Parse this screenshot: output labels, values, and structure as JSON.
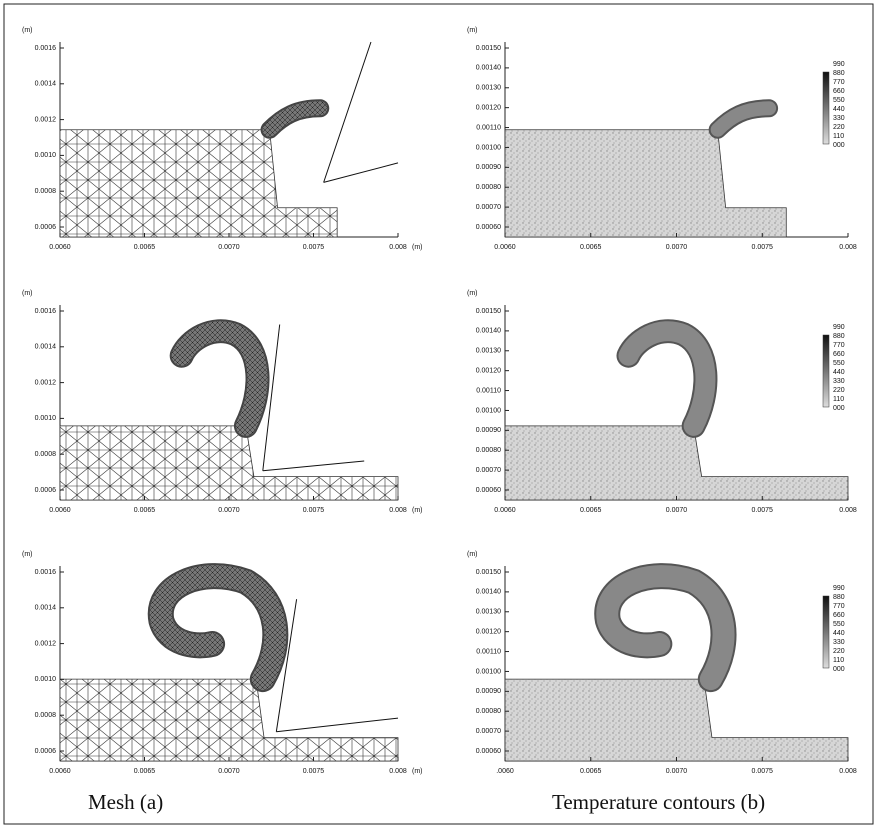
{
  "panels": [
    {
      "y_unit": "(m)",
      "yticks": [
        "0.0016",
        "0.0014",
        "0.0012",
        "0.0010",
        "0.0008",
        "0.0006"
      ],
      "xticks": [
        "0.0060",
        "0.0065",
        "0.0070",
        "0.0075",
        "0.008"
      ],
      "x_unit": "(m)"
    },
    {
      "y_unit": "(m)",
      "yticks": [
        "0.00150",
        "0.00140",
        "0.00130",
        "0.00120",
        "0.00110",
        "0.00100",
        "0.00090",
        "0.00080",
        "0.00070",
        "0.00060"
      ],
      "xticks": [
        "0.0060",
        "0.0065",
        "0.0070",
        "0.0075",
        "0.008"
      ],
      "legend": [
        "990",
        "880",
        "770",
        "660",
        "550",
        "440",
        "330",
        "220",
        "110",
        "000"
      ]
    },
    {
      "y_unit": "(m)",
      "yticks": [
        "0.0016",
        "0.0014",
        "0.0012",
        "0.0010",
        "0.0008",
        "0.0006"
      ],
      "xticks": [
        "0.0060",
        "0.0065",
        "0.0070",
        "0.0075",
        "0.008"
      ],
      "x_unit": "(m)"
    },
    {
      "y_unit": "(m)",
      "yticks": [
        "0.00150",
        "0.00140",
        "0.00130",
        "0.00120",
        "0.00110",
        "0.00100",
        "0.00090",
        "0.00080",
        "0.00070",
        "0.00060"
      ],
      "xticks": [
        "0.0060",
        "0.0065",
        "0.0070",
        "0.0075",
        "0.008"
      ],
      "legend": [
        "990",
        "880",
        "770",
        "660",
        "550",
        "440",
        "330",
        "220",
        "110",
        "000"
      ]
    },
    {
      "y_unit": "(m)",
      "yticks": [
        "0.0016",
        "0.0014",
        "0.0012",
        "0.0010",
        "0.0008",
        "0.0006"
      ],
      "xticks": [
        "0.0060",
        "0.0065",
        "0.0070",
        "0.0075",
        "0.008"
      ],
      "x_unit": "(m)"
    },
    {
      "y_unit": "(m)",
      "yticks": [
        "0.00150",
        "0.00140",
        "0.00130",
        "0.00120",
        "0.00110",
        "0.00100",
        "0.00090",
        "0.00080",
        "0.00070",
        "0.00060"
      ],
      "xticks": [
        ".0060",
        "0.0065",
        "0.0070",
        "0.0075",
        "0.008"
      ],
      "legend": [
        "990",
        "880",
        "770",
        "660",
        "550",
        "440",
        "330",
        "220",
        "110",
        "000"
      ]
    }
  ],
  "captions": [
    "Mesh (a)",
    "Temperature contours (b)"
  ]
}
